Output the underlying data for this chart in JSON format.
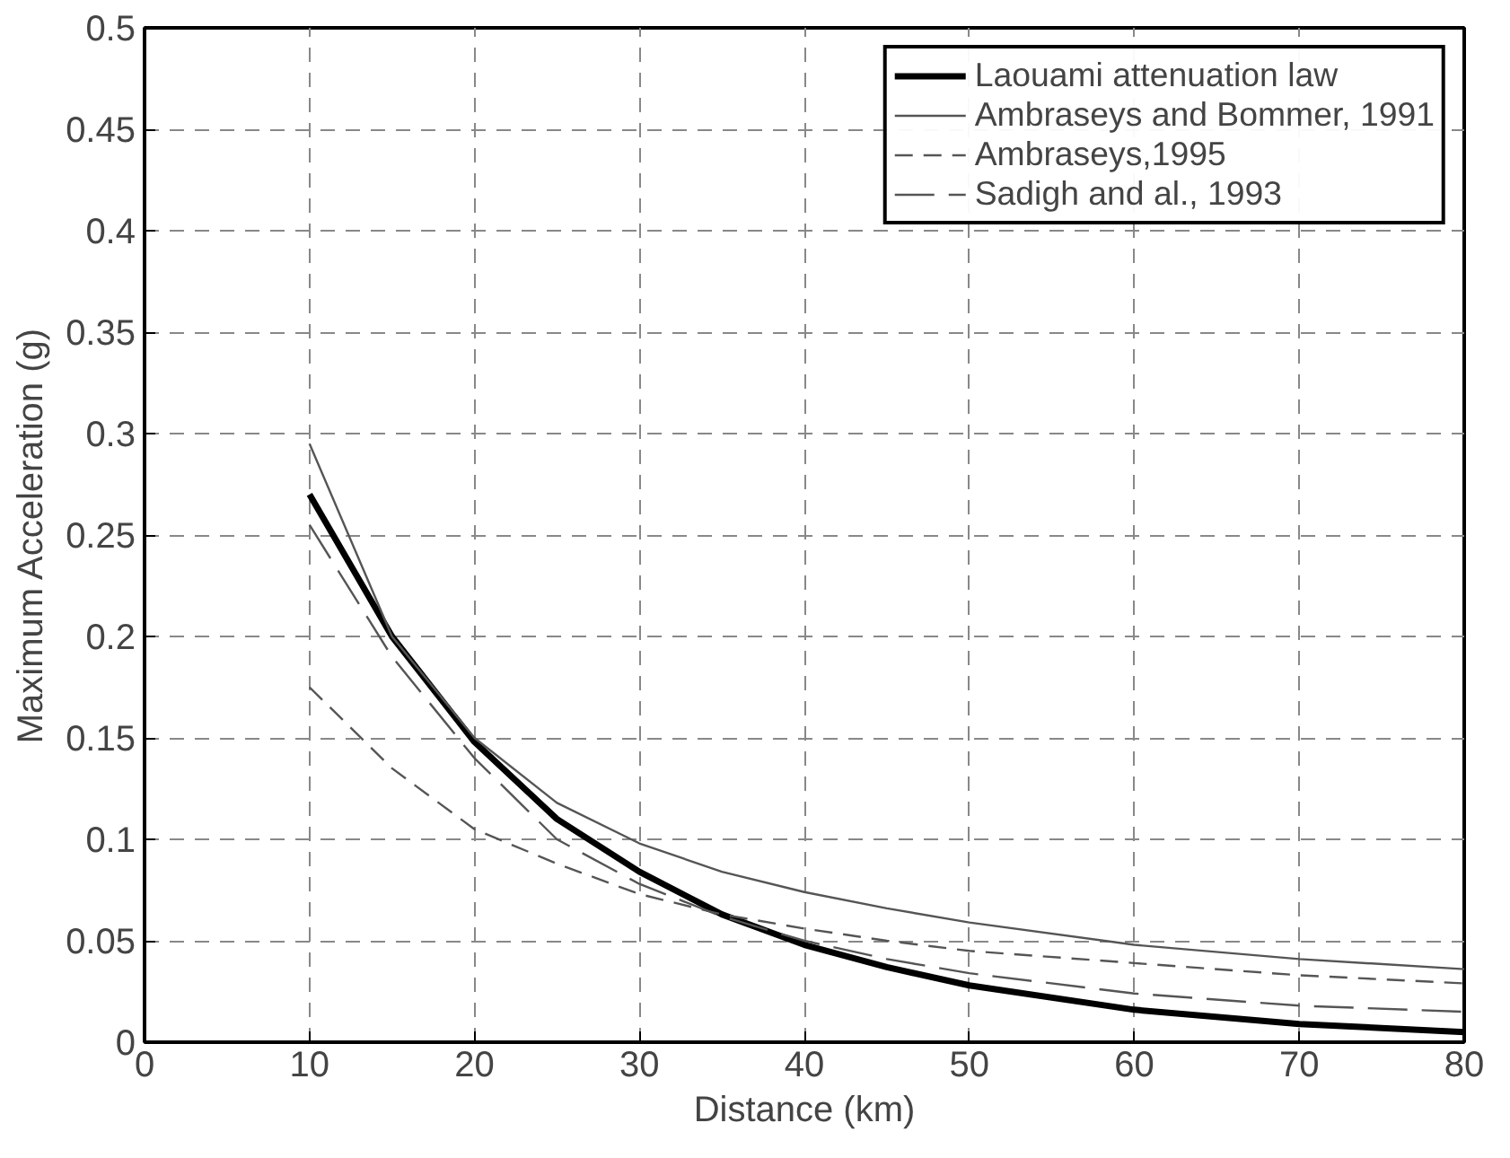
{
  "chart_data": {
    "type": "line",
    "xlabel": "Distance (km)",
    "ylabel": "Maximum Acceleration (g)",
    "xlim": [
      0,
      80
    ],
    "xticks": [
      0,
      10,
      20,
      30,
      40,
      50,
      60,
      70,
      80
    ],
    "ylim": [
      0,
      0.5
    ],
    "yticks": [
      0,
      0.05,
      0.1,
      0.15,
      0.2,
      0.25,
      0.3,
      0.35,
      0.4,
      0.45,
      0.5
    ],
    "grid": true,
    "legend": "top right",
    "marker": "none",
    "x": [
      10,
      15,
      20,
      25,
      30,
      35,
      40,
      45,
      50,
      60,
      70,
      80
    ],
    "series": [
      {
        "name": "Laouami attenuation law",
        "color": "#000000",
        "line_style": "solid",
        "values": [
          0.27,
          0.2,
          0.148,
          0.11,
          0.084,
          0.063,
          0.048,
          0.037,
          0.028,
          0.016,
          0.009,
          0.005
        ]
      },
      {
        "name": "Ambraseys and Bommer, 1991",
        "color": "#555555",
        "line_style": "solid",
        "values": [
          0.295,
          0.2,
          0.15,
          0.118,
          0.098,
          0.084,
          0.074,
          0.066,
          0.059,
          0.048,
          0.041,
          0.036
        ]
      },
      {
        "name": "Ambraseys,1995",
        "color": "#555555",
        "line_style": "dashed",
        "values": [
          0.175,
          0.135,
          0.105,
          0.088,
          0.073,
          0.063,
          0.056,
          0.05,
          0.045,
          0.039,
          0.033,
          0.029
        ]
      },
      {
        "name": "Sadigh and al., 1993",
        "color": "#555555",
        "line_style": "dashed",
        "values": [
          0.255,
          0.19,
          0.14,
          0.1,
          0.078,
          0.062,
          0.05,
          0.041,
          0.034,
          0.024,
          0.018,
          0.015
        ]
      }
    ]
  }
}
